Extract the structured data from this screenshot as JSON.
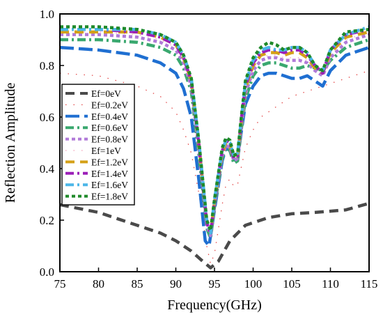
{
  "chart_data": {
    "type": "line",
    "xlabel": "Frequency(GHz)",
    "ylabel": "Reflection Amplitude",
    "xlim": [
      75,
      115
    ],
    "ylim": [
      0.0,
      1.0
    ],
    "xticks": [
      75,
      80,
      85,
      90,
      95,
      100,
      105,
      110,
      115
    ],
    "yticks": [
      0.0,
      0.2,
      0.4,
      0.6,
      0.8,
      1.0
    ],
    "xtick_labels": [
      "75",
      "80",
      "85",
      "90",
      "95",
      "100",
      "105",
      "110",
      "115"
    ],
    "ytick_labels": [
      "0.0",
      "0.2",
      "0.4",
      "0.6",
      "0.8",
      "1.0"
    ],
    "grid": false,
    "legend_position": "left",
    "series": [
      {
        "name": "Ef=0eV",
        "color": "#4a4a4a",
        "dash": "dash",
        "x": [
          75,
          80,
          85,
          88,
          90,
          92,
          93.5,
          94.5,
          95.5,
          97,
          99,
          102,
          105,
          108,
          110,
          112,
          115
        ],
        "values": [
          0.26,
          0.23,
          0.18,
          0.15,
          0.12,
          0.08,
          0.04,
          0.015,
          0.04,
          0.12,
          0.18,
          0.21,
          0.225,
          0.23,
          0.235,
          0.24,
          0.265
        ]
      },
      {
        "name": "Ef=0.2eV",
        "color": "#e34a4a",
        "dash": "sparse",
        "x": [
          75,
          80,
          85,
          88,
          90,
          91,
          92,
          93,
          94,
          94.5,
          95,
          96,
          96.5,
          97,
          97.5,
          98,
          99,
          100,
          101,
          103,
          105,
          106,
          107,
          108,
          110,
          112,
          115
        ],
        "values": [
          0.77,
          0.76,
          0.72,
          0.68,
          0.62,
          0.55,
          0.46,
          0.3,
          0.1,
          0.03,
          0.07,
          0.26,
          0.34,
          0.36,
          0.33,
          0.34,
          0.48,
          0.55,
          0.6,
          0.64,
          0.68,
          0.69,
          0.7,
          0.71,
          0.73,
          0.75,
          0.78
        ]
      },
      {
        "name": "Ef=0.4eV",
        "color": "#1f6fd1",
        "dash": "longdash",
        "x": [
          75,
          80,
          85,
          88,
          90,
          91,
          92,
          93,
          93.8,
          94.3,
          95,
          96,
          96.5,
          97,
          97.5,
          98,
          98.5,
          99,
          100,
          101,
          102,
          103,
          104,
          105,
          106,
          107,
          108,
          109,
          110,
          112,
          115
        ],
        "values": [
          0.87,
          0.86,
          0.84,
          0.81,
          0.77,
          0.71,
          0.6,
          0.35,
          0.12,
          0.1,
          0.24,
          0.43,
          0.48,
          0.47,
          0.43,
          0.44,
          0.55,
          0.65,
          0.72,
          0.76,
          0.77,
          0.77,
          0.76,
          0.75,
          0.75,
          0.76,
          0.74,
          0.72,
          0.78,
          0.84,
          0.87
        ]
      },
      {
        "name": "Ef=0.6eV",
        "color": "#3aa86f",
        "dash": "dashdot",
        "x": [
          75,
          80,
          85,
          88,
          90,
          91,
          92,
          93,
          94,
          94.5,
          95,
          96,
          96.5,
          97,
          97.5,
          98,
          98.5,
          99,
          100,
          101,
          102,
          103,
          104,
          105,
          106,
          107,
          108,
          109,
          110,
          112,
          115
        ],
        "values": [
          0.9,
          0.9,
          0.89,
          0.87,
          0.84,
          0.79,
          0.7,
          0.45,
          0.17,
          0.13,
          0.25,
          0.44,
          0.48,
          0.47,
          0.42,
          0.43,
          0.56,
          0.67,
          0.76,
          0.8,
          0.81,
          0.81,
          0.8,
          0.79,
          0.79,
          0.8,
          0.79,
          0.78,
          0.82,
          0.87,
          0.9
        ]
      },
      {
        "name": "Ef=0.8eV",
        "color": "#b07ad8",
        "dash": "dot",
        "x": [
          75,
          80,
          85,
          88,
          90,
          91,
          92,
          93,
          94,
          94.5,
          95,
          96,
          96.5,
          97,
          97.5,
          98,
          98.5,
          99,
          100,
          101,
          102,
          103,
          104,
          105,
          106,
          107,
          108,
          109,
          110,
          112,
          115
        ],
        "values": [
          0.92,
          0.92,
          0.91,
          0.89,
          0.86,
          0.81,
          0.72,
          0.47,
          0.18,
          0.14,
          0.26,
          0.45,
          0.49,
          0.48,
          0.43,
          0.44,
          0.57,
          0.69,
          0.78,
          0.82,
          0.83,
          0.83,
          0.82,
          0.82,
          0.82,
          0.81,
          0.78,
          0.76,
          0.83,
          0.89,
          0.92
        ]
      },
      {
        "name": "Ef=1eV",
        "color": "#f2a0b8",
        "dash": "sparse",
        "x": [
          75,
          80,
          85,
          88,
          90,
          91,
          92,
          93,
          94,
          94.5,
          95,
          96,
          96.5,
          97,
          97.5,
          98,
          98.5,
          99,
          100,
          101,
          102,
          103,
          104,
          105,
          106,
          107,
          108,
          109,
          110,
          112,
          115
        ],
        "values": [
          0.93,
          0.93,
          0.92,
          0.9,
          0.87,
          0.82,
          0.73,
          0.48,
          0.18,
          0.14,
          0.27,
          0.46,
          0.5,
          0.49,
          0.44,
          0.45,
          0.58,
          0.7,
          0.79,
          0.83,
          0.84,
          0.84,
          0.83,
          0.83,
          0.83,
          0.82,
          0.79,
          0.77,
          0.84,
          0.9,
          0.93
        ]
      },
      {
        "name": "Ef=1.2eV",
        "color": "#d4a017",
        "dash": "dash",
        "x": [
          75,
          80,
          85,
          88,
          90,
          91,
          92,
          93,
          94,
          94.5,
          95,
          96,
          96.5,
          97,
          97.5,
          98,
          98.5,
          99,
          100,
          101,
          102,
          103,
          104,
          105,
          106,
          107,
          108,
          109,
          110,
          112,
          115
        ],
        "values": [
          0.93,
          0.93,
          0.93,
          0.91,
          0.88,
          0.83,
          0.74,
          0.49,
          0.19,
          0.15,
          0.27,
          0.46,
          0.5,
          0.49,
          0.44,
          0.45,
          0.59,
          0.71,
          0.8,
          0.84,
          0.85,
          0.85,
          0.84,
          0.85,
          0.85,
          0.83,
          0.79,
          0.77,
          0.85,
          0.91,
          0.93
        ]
      },
      {
        "name": "Ef=1.4eV",
        "color": "#9b1fb8",
        "dash": "dashdot",
        "x": [
          75,
          80,
          85,
          88,
          90,
          91,
          92,
          93,
          94,
          94.5,
          95,
          96,
          96.5,
          97,
          97.5,
          98,
          98.5,
          99,
          100,
          101,
          102,
          103,
          104,
          105,
          106,
          107,
          108,
          109,
          110,
          112,
          115
        ],
        "values": [
          0.94,
          0.94,
          0.93,
          0.91,
          0.88,
          0.83,
          0.74,
          0.49,
          0.19,
          0.15,
          0.27,
          0.47,
          0.51,
          0.5,
          0.44,
          0.45,
          0.6,
          0.72,
          0.81,
          0.85,
          0.86,
          0.86,
          0.85,
          0.86,
          0.86,
          0.84,
          0.8,
          0.77,
          0.86,
          0.92,
          0.94
        ]
      },
      {
        "name": "Ef=1.6eV",
        "color": "#4cb6e8",
        "dash": "dashdot",
        "x": [
          75,
          80,
          85,
          88,
          90,
          91,
          92,
          93,
          94,
          94.5,
          95,
          96,
          96.5,
          97,
          97.5,
          98,
          98.5,
          99,
          100,
          101,
          102,
          103,
          104,
          105,
          106,
          107,
          108,
          109,
          110,
          112,
          115
        ],
        "values": [
          0.94,
          0.94,
          0.94,
          0.92,
          0.89,
          0.84,
          0.75,
          0.5,
          0.2,
          0.15,
          0.28,
          0.47,
          0.51,
          0.5,
          0.45,
          0.46,
          0.6,
          0.73,
          0.82,
          0.86,
          0.87,
          0.86,
          0.86,
          0.87,
          0.87,
          0.85,
          0.8,
          0.78,
          0.86,
          0.92,
          0.95
        ]
      },
      {
        "name": "Ef=1.8eV",
        "color": "#1f8a2a",
        "dash": "dot",
        "x": [
          75,
          80,
          85,
          88,
          90,
          91,
          92,
          93,
          94,
          94.5,
          95,
          96,
          96.5,
          97,
          97.5,
          98,
          98.5,
          99,
          100,
          101,
          102,
          103,
          104,
          105,
          106,
          107,
          108,
          109,
          110,
          112,
          115
        ],
        "values": [
          0.95,
          0.95,
          0.94,
          0.92,
          0.89,
          0.84,
          0.75,
          0.5,
          0.2,
          0.16,
          0.28,
          0.48,
          0.52,
          0.51,
          0.45,
          0.46,
          0.61,
          0.74,
          0.83,
          0.87,
          0.89,
          0.88,
          0.86,
          0.87,
          0.87,
          0.85,
          0.8,
          0.78,
          0.86,
          0.93,
          0.94
        ]
      }
    ]
  }
}
